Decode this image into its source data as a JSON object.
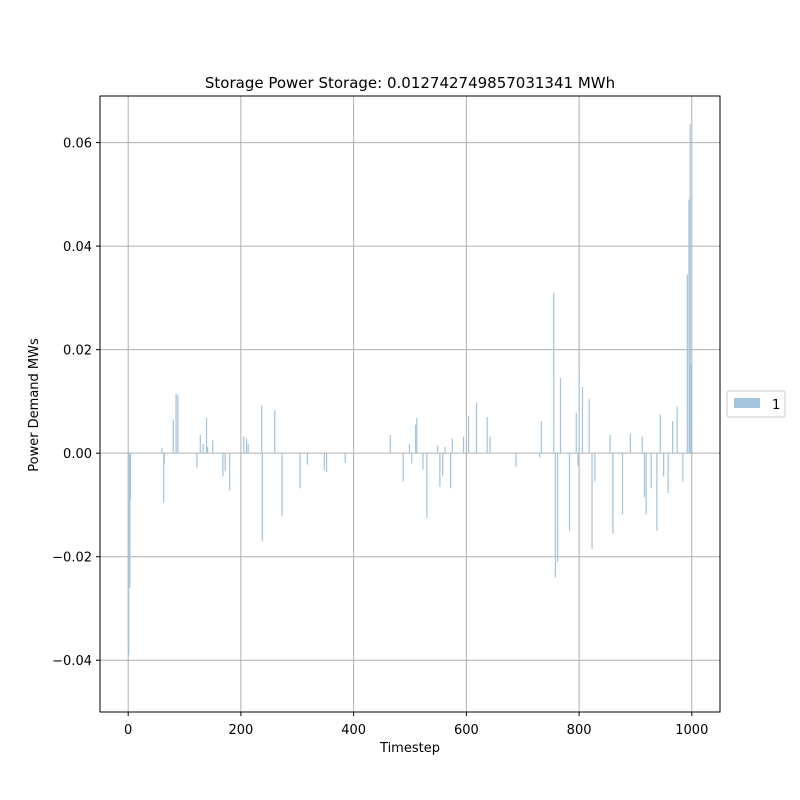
{
  "chart_data": {
    "type": "bar",
    "title": "Storage Power Storage: 0.012742749857031341 MWh",
    "xlabel": "Timestep",
    "ylabel": "Power Demand MWs",
    "xlim": [
      -50,
      1050
    ],
    "ylim": [
      -0.05,
      0.069
    ],
    "xticks": [
      0,
      200,
      400,
      600,
      800,
      1000
    ],
    "xtick_labels": [
      "0",
      "200",
      "400",
      "600",
      "800",
      "1000"
    ],
    "yticks": [
      -0.04,
      -0.02,
      0.0,
      0.02,
      0.04,
      0.06
    ],
    "ytick_labels": [
      "−0.04",
      "−0.02",
      "0.00",
      "0.02",
      "0.04",
      "0.06"
    ],
    "grid": true,
    "legend": {
      "placement": "outside-right",
      "entries": [
        "1"
      ]
    },
    "bar_color": "#a3c4dc",
    "series": [
      {
        "name": "1",
        "x": [
          0,
          1,
          2,
          3,
          4,
          60,
          63,
          64,
          80,
          85,
          88,
          122,
          128,
          133,
          139,
          141,
          150,
          168,
          172,
          180,
          205,
          210,
          213,
          237,
          238,
          260,
          273,
          305,
          318,
          348,
          352,
          385,
          465,
          488,
          499,
          503,
          510,
          512,
          523,
          530,
          549,
          553,
          558,
          562,
          572,
          575,
          595,
          604,
          618,
          637,
          642,
          688,
          730,
          733,
          755,
          758,
          762,
          767,
          783,
          795,
          798,
          800,
          806,
          818,
          823,
          828,
          855,
          860,
          877,
          891,
          912,
          916,
          919,
          928,
          938,
          944,
          950,
          958,
          966,
          974,
          984,
          992,
          995,
          997,
          999
        ],
        "values": [
          -0.037,
          -0.039,
          -0.018,
          -0.026,
          -0.009,
          0.001,
          -0.0095,
          -0.002,
          0.0065,
          0.0115,
          0.0112,
          -0.0028,
          0.0035,
          0.0018,
          0.0068,
          0.0012,
          0.0025,
          -0.0045,
          -0.0035,
          -0.0072,
          0.0032,
          0.0028,
          0.0018,
          0.0092,
          -0.017,
          0.0083,
          -0.0122,
          -0.0068,
          -0.0022,
          -0.0033,
          -0.0037,
          -0.0019,
          0.0035,
          -0.0055,
          0.0018,
          -0.002,
          0.0055,
          0.0068,
          -0.0032,
          -0.0125,
          0.0015,
          -0.0065,
          -0.0045,
          0.0012,
          -0.0068,
          0.0028,
          0.0032,
          0.0072,
          0.0098,
          0.007,
          0.0032,
          -0.0026,
          -0.0008,
          0.0062,
          0.031,
          -0.024,
          -0.021,
          0.0145,
          -0.015,
          0.0078,
          -0.0025,
          0.0158,
          0.0128,
          0.0105,
          -0.0185,
          -0.0055,
          0.0035,
          -0.0155,
          -0.0118,
          0.0038,
          0.0032,
          -0.0085,
          -0.0118,
          -0.0068,
          -0.015,
          0.0075,
          -0.0045,
          -0.0077,
          0.0062,
          0.009,
          -0.0055,
          0.0345,
          0.049,
          0.0635,
          0.017
        ]
      }
    ]
  }
}
